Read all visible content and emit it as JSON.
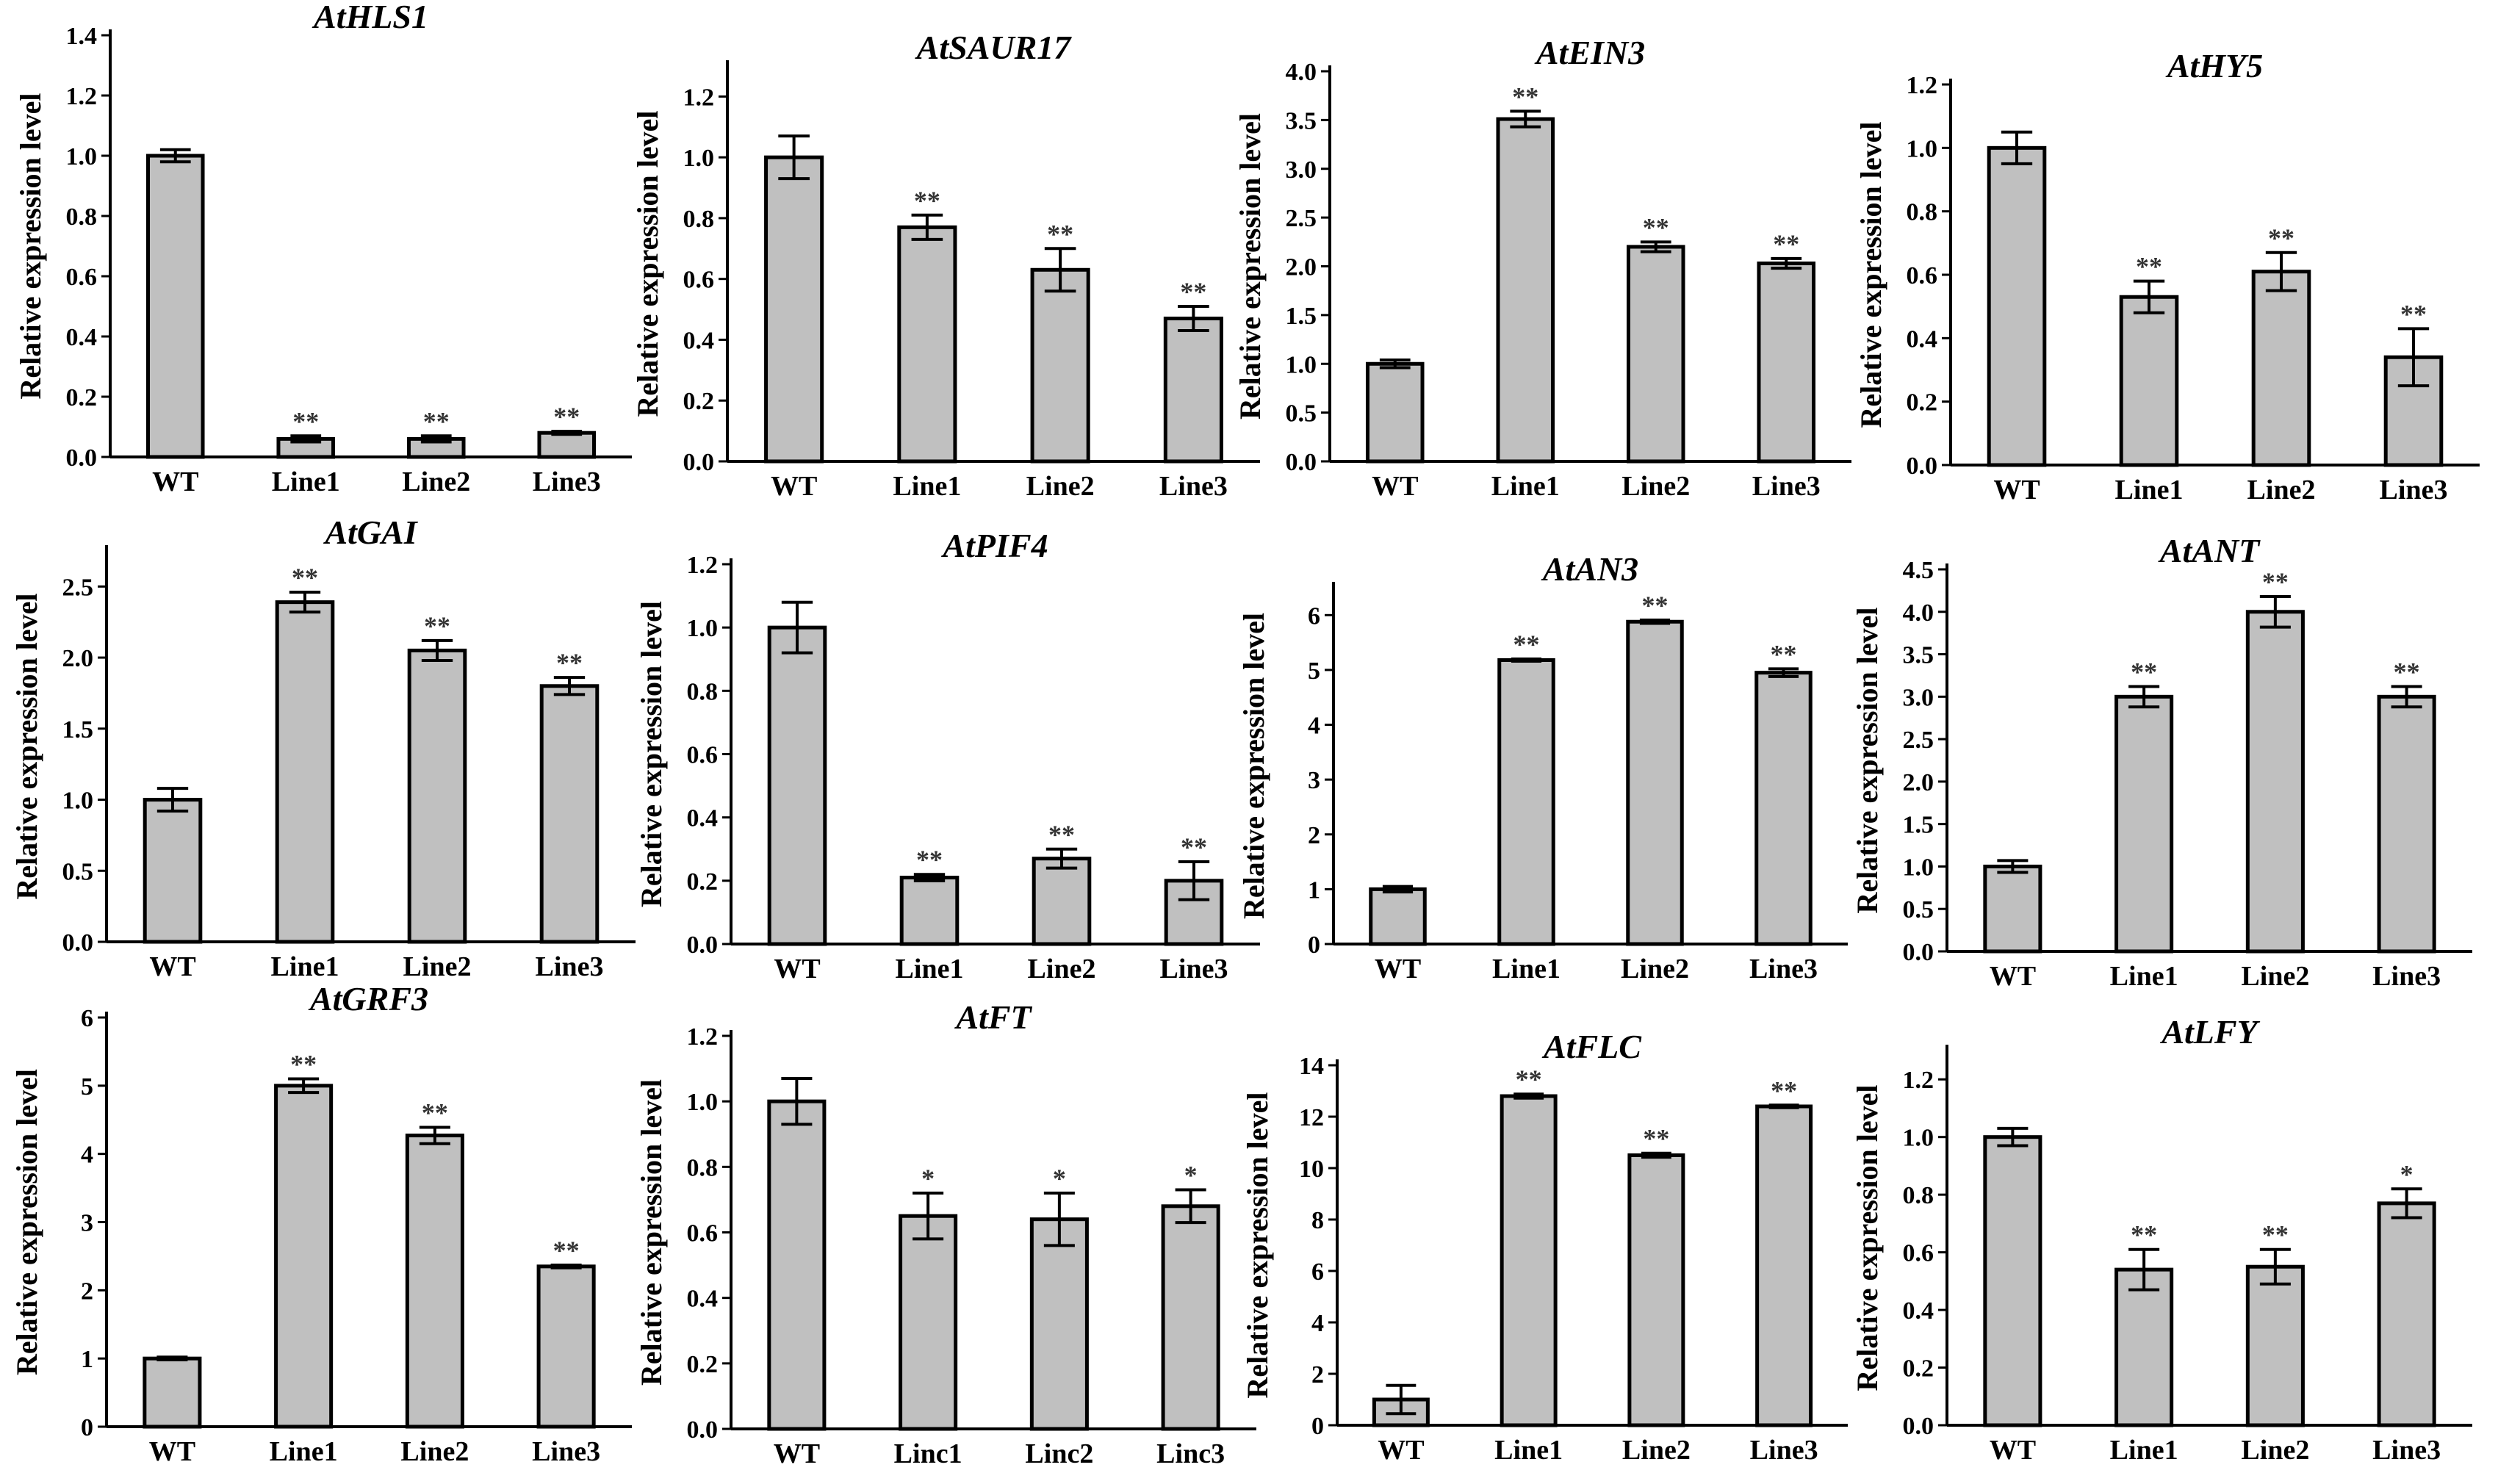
{
  "chart_data": [
    {
      "type": "bar",
      "title": "AtHLS1",
      "ylabel": "Relative expression level",
      "categories": [
        "WT",
        "Line1",
        "Line2",
        "Line3"
      ],
      "values": [
        1.0,
        0.06,
        0.06,
        0.08
      ],
      "errors": [
        0.02,
        0.01,
        0.01,
        0.005
      ],
      "significance": [
        "",
        "**",
        "**",
        "**"
      ],
      "ylim": [
        0,
        1.4
      ],
      "yticks": [
        0.0,
        0.2,
        0.4,
        0.6,
        0.8,
        1.0,
        1.2,
        1.4
      ],
      "ytick_labels": [
        "0.0",
        "0.2",
        "0.4",
        "0.6",
        "0.8",
        "1.0",
        "1.2",
        "1.4"
      ]
    },
    {
      "type": "bar",
      "title": "AtSAUR17",
      "ylabel": "Relative expression level",
      "categories": [
        "WT",
        "Line1",
        "Line2",
        "Line3"
      ],
      "values": [
        1.0,
        0.77,
        0.63,
        0.47
      ],
      "errors": [
        0.07,
        0.04,
        0.07,
        0.04
      ],
      "significance": [
        "",
        "**",
        "**",
        "**"
      ],
      "ylim": [
        0,
        1.3
      ],
      "yticks": [
        0.0,
        0.2,
        0.4,
        0.6,
        0.8,
        1.0,
        1.2
      ],
      "ytick_labels": [
        "0.0",
        "0.2",
        "0.4",
        "0.6",
        "0.8",
        "1.0",
        "1.2"
      ]
    },
    {
      "type": "bar",
      "title": "AtEIN3",
      "ylabel": "Relative expression level",
      "categories": [
        "WT",
        "Line1",
        "Line2",
        "Line3"
      ],
      "values": [
        1.0,
        3.51,
        2.2,
        2.03
      ],
      "errors": [
        0.04,
        0.08,
        0.05,
        0.05
      ],
      "significance": [
        "",
        "**",
        "**",
        "**"
      ],
      "ylim": [
        0,
        4.0
      ],
      "yticks": [
        0.0,
        0.5,
        1.0,
        1.5,
        2.0,
        2.5,
        3.0,
        3.5,
        4.0
      ],
      "ytick_labels": [
        "0.0",
        "0.5",
        "1.0",
        "1.5",
        "2.0",
        "2.5",
        "3.0",
        "3.5",
        "4.0"
      ]
    },
    {
      "type": "bar",
      "title": "AtHY5",
      "ylabel": "Relative expression level",
      "categories": [
        "WT",
        "Line1",
        "Line2",
        "Line3"
      ],
      "values": [
        1.0,
        0.53,
        0.61,
        0.34
      ],
      "errors": [
        0.05,
        0.05,
        0.06,
        0.09
      ],
      "significance": [
        "",
        "**",
        "**",
        "**"
      ],
      "ylim": [
        0,
        1.2
      ],
      "yticks": [
        0.0,
        0.2,
        0.4,
        0.6,
        0.8,
        1.0,
        1.2
      ],
      "ytick_labels": [
        "0.0",
        "0.2",
        "0.4",
        "0.6",
        "0.8",
        "1.0",
        "1.2"
      ]
    },
    {
      "type": "bar",
      "title": "AtGAI",
      "ylabel": "Relative expression level",
      "categories": [
        "WT",
        "Line1",
        "Line2",
        "Line3"
      ],
      "values": [
        1.0,
        2.39,
        2.05,
        1.8
      ],
      "errors": [
        0.08,
        0.07,
        0.07,
        0.06
      ],
      "significance": [
        "",
        "**",
        "**",
        "**"
      ],
      "ylim": [
        0,
        2.75
      ],
      "yticks": [
        0.0,
        0.5,
        1.0,
        1.5,
        2.0,
        2.5
      ],
      "ytick_labels": [
        "0.0",
        "0.5",
        "1.0",
        "1.5",
        "2.0",
        "2.5"
      ]
    },
    {
      "type": "bar",
      "title": "AtPIF4",
      "ylabel": "Relative expression level",
      "categories": [
        "WT",
        "Line1",
        "Line2",
        "Line3"
      ],
      "values": [
        1.0,
        0.21,
        0.27,
        0.2
      ],
      "errors": [
        0.08,
        0.01,
        0.03,
        0.06
      ],
      "significance": [
        "",
        "**",
        "**",
        "**"
      ],
      "ylim": [
        0,
        1.2
      ],
      "yticks": [
        0.0,
        0.2,
        0.4,
        0.6,
        0.8,
        1.0,
        1.2
      ],
      "ytick_labels": [
        "0.0",
        "0.2",
        "0.4",
        "0.6",
        "0.8",
        "1.0",
        "1.2"
      ]
    },
    {
      "type": "bar",
      "title": "AtAN3",
      "ylabel": "Relative expression level",
      "categories": [
        "WT",
        "Line1",
        "Line2",
        "Line3"
      ],
      "values": [
        1.0,
        5.18,
        5.88,
        4.95
      ],
      "errors": [
        0.05,
        0.02,
        0.03,
        0.07
      ],
      "significance": [
        "",
        "**",
        "**",
        "**"
      ],
      "ylim": [
        0,
        6.5
      ],
      "yticks": [
        0,
        1,
        2,
        3,
        4,
        5,
        6
      ],
      "ytick_labels": [
        "0",
        "1",
        "2",
        "3",
        "4",
        "5",
        "6"
      ]
    },
    {
      "type": "bar",
      "title": "AtANT",
      "ylabel": "Relative expression level",
      "categories": [
        "WT",
        "Line1",
        "Line2",
        "Line3"
      ],
      "values": [
        1.0,
        3.0,
        4.0,
        3.0
      ],
      "errors": [
        0.07,
        0.12,
        0.18,
        0.12
      ],
      "significance": [
        "",
        "**",
        "**",
        "**"
      ],
      "ylim": [
        0,
        4.5
      ],
      "yticks": [
        0.0,
        0.5,
        1.0,
        1.5,
        2.0,
        2.5,
        3.0,
        3.5,
        4.0,
        4.5
      ],
      "ytick_labels": [
        "0.0",
        "0.5",
        "1.0",
        "1.5",
        "2.0",
        "2.5",
        "3.0",
        "3.5",
        "4.0",
        "4.5"
      ]
    },
    {
      "type": "bar",
      "title": "AtGRF3",
      "ylabel": "Relative expression level",
      "categories": [
        "WT",
        "Line1",
        "Line2",
        "Line3"
      ],
      "values": [
        1.0,
        5.0,
        4.27,
        2.35
      ],
      "errors": [
        0.02,
        0.1,
        0.12,
        0.02
      ],
      "significance": [
        "",
        "**",
        "**",
        "**"
      ],
      "ylim": [
        0,
        6
      ],
      "yticks": [
        0,
        1,
        2,
        3,
        4,
        5,
        6
      ],
      "ytick_labels": [
        "0",
        "1",
        "2",
        "3",
        "4",
        "5",
        "6"
      ]
    },
    {
      "type": "bar",
      "title": "AtFT",
      "ylabel": "Relative expression level",
      "categories": [
        "WT",
        "Linc1",
        "Linc2",
        "Linc3"
      ],
      "values": [
        1.0,
        0.65,
        0.64,
        0.68
      ],
      "errors": [
        0.07,
        0.07,
        0.08,
        0.05
      ],
      "significance": [
        "",
        "*",
        "*",
        "*"
      ],
      "ylim": [
        0,
        1.2
      ],
      "yticks": [
        0.0,
        0.2,
        0.4,
        0.6,
        0.8,
        1.0,
        1.2
      ],
      "ytick_labels": [
        "0.0",
        "0.2",
        "0.4",
        "0.6",
        "0.8",
        "1.0",
        "1.2"
      ]
    },
    {
      "type": "bar",
      "title": "AtFLC",
      "ylabel": "Relative expression level",
      "categories": [
        "WT",
        "Line1",
        "Line2",
        "Line3"
      ],
      "values": [
        1.0,
        12.8,
        10.5,
        12.4
      ],
      "errors": [
        0.55,
        0.08,
        0.08,
        0.05
      ],
      "significance": [
        "",
        "**",
        "**",
        "**"
      ],
      "ylim": [
        0,
        14
      ],
      "yticks": [
        0,
        2,
        4,
        6,
        8,
        10,
        12,
        14
      ],
      "ytick_labels": [
        "0",
        "2",
        "4",
        "6",
        "8",
        "10",
        "12",
        "14"
      ]
    },
    {
      "type": "bar",
      "title": "AtLFY",
      "ylabel": "Relative expression level",
      "categories": [
        "WT",
        "Line1",
        "Line2",
        "Line3"
      ],
      "values": [
        1.0,
        0.54,
        0.55,
        0.77
      ],
      "errors": [
        0.03,
        0.07,
        0.06,
        0.05
      ],
      "significance": [
        "",
        "**",
        "**",
        "*"
      ],
      "ylim": [
        0,
        1.3
      ],
      "yticks": [
        0.0,
        0.2,
        0.4,
        0.6,
        0.8,
        1.0,
        1.2
      ],
      "ytick_labels": [
        "0.0",
        "0.2",
        "0.4",
        "0.6",
        "0.8",
        "1.0",
        "1.2"
      ]
    }
  ]
}
